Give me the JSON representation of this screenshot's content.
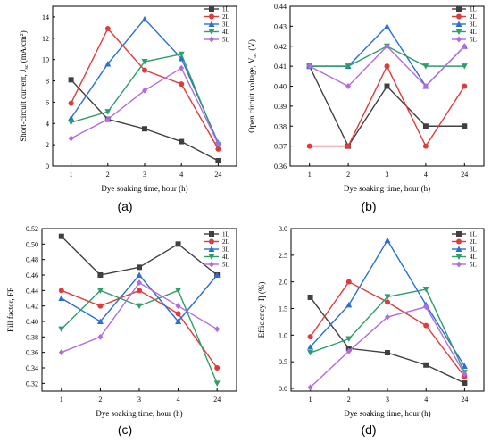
{
  "figure": {
    "panel_labels": [
      "(a)",
      "(b)",
      "(c)",
      "(d)"
    ]
  },
  "chart_data": [
    {
      "type": "line",
      "categories": [
        "1",
        "2",
        "3",
        "4",
        "24"
      ],
      "xlabel": "Dye soaking time, hour (h)",
      "ylabel": "Short-circuit current, J",
      "ylabel_sub": "sc",
      "ylabel_unit": " (mA/cm",
      "ylabel_sup": "2",
      "ylabel_end": ")",
      "ylim": [
        0,
        15
      ],
      "yticks": [
        0,
        2,
        4,
        6,
        8,
        10,
        12,
        14
      ],
      "ytick_labels": [
        "0",
        "2",
        "4",
        "6",
        "8",
        "10",
        "12",
        "14"
      ],
      "legend": "top-right",
      "series": [
        {
          "name": "1L",
          "color": "#404040",
          "marker": "square",
          "values": [
            8.1,
            4.4,
            3.5,
            2.3,
            0.5
          ]
        },
        {
          "name": "2L",
          "color": "#e03a3a",
          "marker": "circle",
          "values": [
            5.9,
            12.9,
            9.0,
            7.7,
            1.6
          ]
        },
        {
          "name": "3L",
          "color": "#2a6fd6",
          "marker": "triangle-up",
          "values": [
            4.5,
            9.6,
            13.8,
            10.1,
            2.2
          ]
        },
        {
          "name": "4L",
          "color": "#2e9e6b",
          "marker": "triangle-down",
          "values": [
            4.1,
            5.1,
            9.8,
            10.5,
            2.0
          ]
        },
        {
          "name": "5L",
          "color": "#b46be0",
          "marker": "diamond",
          "values": [
            2.6,
            4.4,
            7.1,
            9.2,
            2.1
          ]
        }
      ]
    },
    {
      "type": "line",
      "categories": [
        "1",
        "2",
        "3",
        "4",
        "24"
      ],
      "xlabel": "Dye soaking time, hour (h)",
      "ylabel": "Open circuit voltage, V",
      "ylabel_sub": "oc",
      "ylabel_unit": " (V)",
      "ylim": [
        0.36,
        0.44
      ],
      "yticks": [
        0.36,
        0.37,
        0.38,
        0.39,
        0.4,
        0.41,
        0.42,
        0.43,
        0.44
      ],
      "ytick_labels": [
        "0.36",
        "0.37",
        "0.38",
        "0.39",
        "0.40",
        "0.41",
        "0.42",
        "0.43",
        "0.44"
      ],
      "legend": "top-right",
      "series": [
        {
          "name": "1L",
          "color": "#404040",
          "marker": "square",
          "values": [
            0.41,
            0.37,
            0.4,
            0.38,
            0.38
          ]
        },
        {
          "name": "2L",
          "color": "#e03a3a",
          "marker": "circle",
          "values": [
            0.37,
            0.37,
            0.41,
            0.37,
            0.4
          ]
        },
        {
          "name": "3L",
          "color": "#2a6fd6",
          "marker": "triangle-up",
          "values": [
            0.41,
            0.41,
            0.43,
            0.4,
            0.42
          ]
        },
        {
          "name": "4L",
          "color": "#2e9e6b",
          "marker": "triangle-down",
          "values": [
            0.41,
            0.41,
            0.42,
            0.41,
            0.41
          ]
        },
        {
          "name": "5L",
          "color": "#b46be0",
          "marker": "diamond",
          "values": [
            0.41,
            0.4,
            0.42,
            0.4,
            0.42
          ]
        }
      ]
    },
    {
      "type": "line",
      "categories": [
        "1",
        "2",
        "3",
        "4",
        "24"
      ],
      "xlabel": "Dye soaking time, hour (h)",
      "ylabel": "Fill factor, FF",
      "ylim": [
        0.31,
        0.52
      ],
      "yticks": [
        0.32,
        0.34,
        0.36,
        0.38,
        0.4,
        0.42,
        0.44,
        0.46,
        0.48,
        0.5,
        0.52
      ],
      "ytick_labels": [
        "0.32",
        "0.34",
        "0.36",
        "0.38",
        "0.40",
        "0.42",
        "0.44",
        "0.46",
        "0.48",
        "0.50",
        "0.52"
      ],
      "legend": "right",
      "series": [
        {
          "name": "1L",
          "color": "#404040",
          "marker": "square",
          "values": [
            0.51,
            0.46,
            0.47,
            0.5,
            0.46
          ]
        },
        {
          "name": "2L",
          "color": "#e03a3a",
          "marker": "circle",
          "values": [
            0.44,
            0.42,
            0.44,
            0.41,
            0.34
          ]
        },
        {
          "name": "3L",
          "color": "#2a6fd6",
          "marker": "triangle-up",
          "values": [
            0.43,
            0.4,
            0.46,
            0.4,
            0.46
          ]
        },
        {
          "name": "4L",
          "color": "#2e9e6b",
          "marker": "triangle-down",
          "values": [
            0.39,
            0.44,
            0.42,
            0.44,
            0.32
          ]
        },
        {
          "name": "5L",
          "color": "#b46be0",
          "marker": "diamond",
          "values": [
            0.36,
            0.38,
            0.45,
            0.42,
            0.39
          ]
        }
      ]
    },
    {
      "type": "line",
      "categories": [
        "1",
        "2",
        "3",
        "4",
        "24"
      ],
      "xlabel": "Dye soaking time, hour (h)",
      "ylabel": "Efficiency, Ƞ (%)",
      "ylim": [
        -0.05,
        3.0
      ],
      "yticks": [
        0.0,
        0.5,
        1.0,
        1.5,
        2.0,
        2.5,
        3.0
      ],
      "ytick_labels": [
        "0.0",
        "0.5",
        "1.0",
        "1.5",
        "2.0",
        "2.5",
        "3.0"
      ],
      "legend": "top-right",
      "series": [
        {
          "name": "1L",
          "color": "#404040",
          "marker": "square",
          "values": [
            1.71,
            0.75,
            0.67,
            0.44,
            0.1
          ]
        },
        {
          "name": "2L",
          "color": "#e03a3a",
          "marker": "circle",
          "values": [
            0.97,
            2.0,
            1.62,
            1.18,
            0.22
          ]
        },
        {
          "name": "3L",
          "color": "#2a6fd6",
          "marker": "triangle-up",
          "values": [
            0.78,
            1.57,
            2.78,
            1.57,
            0.42
          ]
        },
        {
          "name": "4L",
          "color": "#2e9e6b",
          "marker": "triangle-down",
          "values": [
            0.67,
            0.93,
            1.72,
            1.86,
            0.3
          ]
        },
        {
          "name": "5L",
          "color": "#b46be0",
          "marker": "diamond",
          "values": [
            0.02,
            0.7,
            1.34,
            1.53,
            0.27
          ]
        }
      ]
    }
  ]
}
